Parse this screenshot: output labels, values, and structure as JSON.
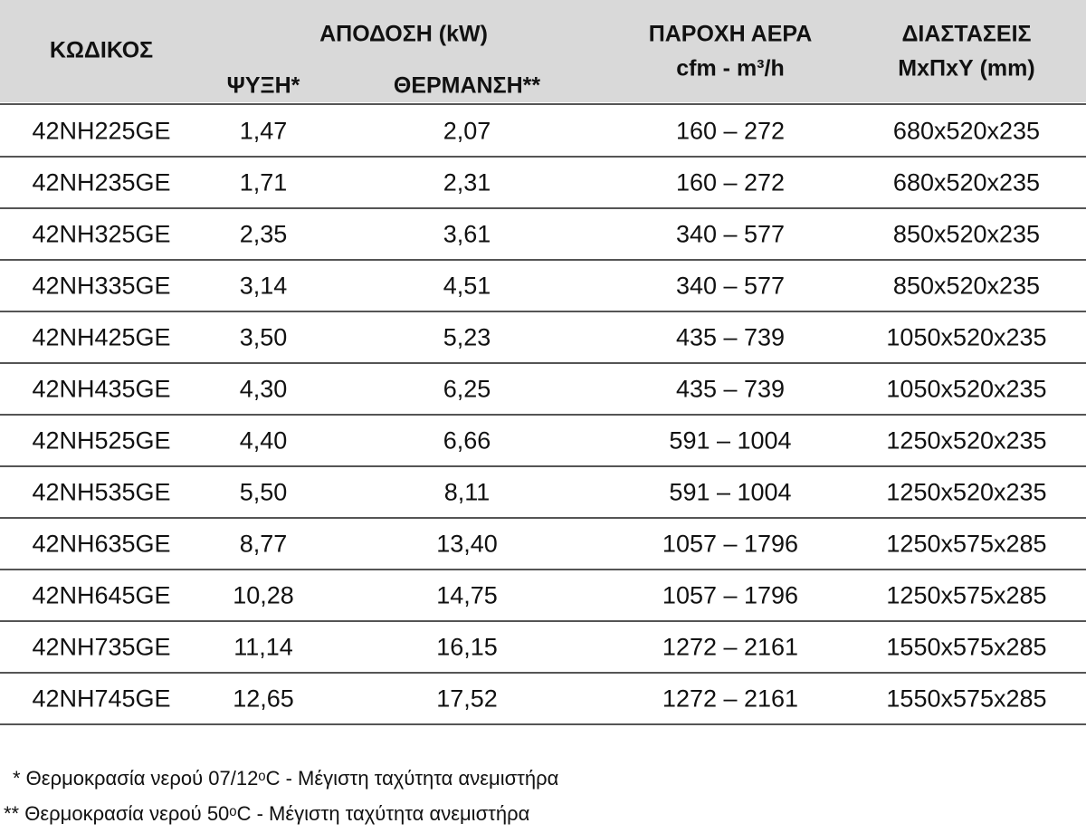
{
  "table": {
    "header": {
      "code": "ΚΩΔΙΚΟΣ",
      "capacity": "ΑΠΟΔΟΣΗ (kW)",
      "cooling": "ΨΥΞΗ*",
      "heating": "ΘΕΡΜΑΝΣΗ**",
      "airflow": "ΠΑΡΟΧΗ ΑΕΡΑ",
      "airflow_units": "cfm - m³/h",
      "dimensions": "ΔΙΑΣΤΑΣΕΙΣ",
      "dimensions_units": "ΜxΠxΥ (mm)"
    },
    "rows": [
      [
        "42NH225GE",
        "1,47",
        "2,07",
        "160  –  272",
        "680x520x235"
      ],
      [
        "42NH235GE",
        "1,71",
        "2,31",
        "160  –  272",
        "680x520x235"
      ],
      [
        "42NH325GE",
        "2,35",
        "3,61",
        "340  –  577",
        "850x520x235"
      ],
      [
        "42NH335GE",
        "3,14",
        "4,51",
        "340  –  577",
        "850x520x235"
      ],
      [
        "42NH425GE",
        "3,50",
        "5,23",
        "435  –  739",
        "1050x520x235"
      ],
      [
        "42NH435GE",
        "4,30",
        "6,25",
        "435  –  739",
        "1050x520x235"
      ],
      [
        "42NH525GE",
        "4,40",
        "6,66",
        "591  –  1004",
        "1250x520x235"
      ],
      [
        "42NH535GE",
        "5,50",
        "8,11",
        "591  –  1004",
        "1250x520x235"
      ],
      [
        "42NH635GE",
        "8,77",
        "13,40",
        "1057 – 1796",
        "1250x575x285"
      ],
      [
        "42NH645GE",
        "10,28",
        "14,75",
        "1057 – 1796",
        "1250x575x285"
      ],
      [
        "42NH735GE",
        "11,14",
        "16,15",
        "1272 – 2161",
        "1550x575x285"
      ],
      [
        "42NH745GE",
        "12,65",
        "17,52",
        "1272 – 2161",
        "1550x575x285"
      ]
    ]
  },
  "notes": [
    " * Θερμοκρασία νερού 07/12ᵒC - Μέγιστη ταχύτητα ανεμιστήρα",
    "** Θερμοκρασία νερού 50ᵒC - Μέγιστη ταχύτητα ανεμιστήρα"
  ]
}
